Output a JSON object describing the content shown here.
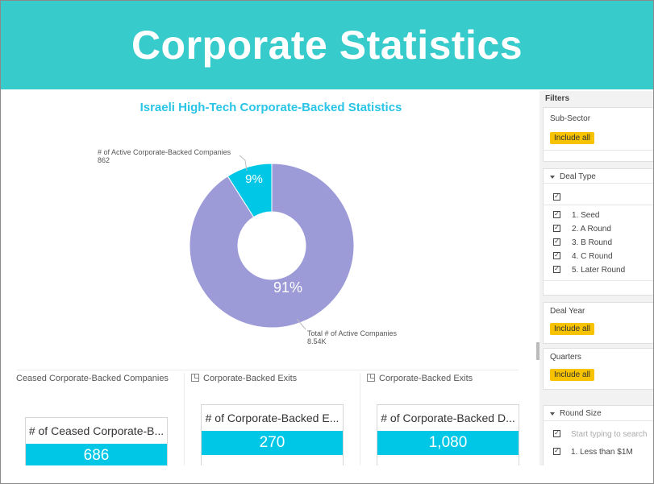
{
  "banner": {
    "title": "Corporate Statistics"
  },
  "chart_data": {
    "type": "pie",
    "title": "Israeli High-Tech Corporate-Backed Statistics",
    "slices": [
      {
        "label": "# of Active Corporate-Backed Companies",
        "value_label": "862",
        "percent": 9,
        "color": "#00c7e6"
      },
      {
        "label": "Total # of Active Companies",
        "value_label": "8.54K",
        "percent": 91,
        "color": "#9c9bd8"
      }
    ],
    "percent_labels": [
      "9%",
      "91%"
    ]
  },
  "tiles": [
    {
      "header": "Ceased Corporate-Backed Companies",
      "card_label": "# of Ceased Corporate-B...",
      "value": "686"
    },
    {
      "header": "Corporate-Backed Exits",
      "card_label": "# of Corporate-Backed E...",
      "value": "270"
    },
    {
      "header": "Corporate-Backed Exits",
      "card_label": "# of Corporate-Backed D...",
      "value": "1,080"
    }
  ],
  "filters": {
    "title": "Filters",
    "sub_sector": {
      "label": "Sub-Sector",
      "button": "Include all"
    },
    "deal_type": {
      "label": "Deal Type",
      "options": [
        "1. Seed",
        "2. A Round",
        "3. B Round",
        "4. C Round",
        "5. Later Round"
      ]
    },
    "deal_year": {
      "label": "Deal Year",
      "button": "Include all"
    },
    "quarters": {
      "label": "Quarters",
      "button": "Include all"
    },
    "round_size": {
      "label": "Round Size",
      "search_placeholder": "Start typing to search",
      "options": [
        "1. Less than $1M"
      ]
    }
  },
  "colors": {
    "banner": "#37cbcb",
    "accent": "#00c7e6",
    "slice_large": "#9c9bd8",
    "title": "#29c4e6",
    "pill": "#f7c200"
  }
}
